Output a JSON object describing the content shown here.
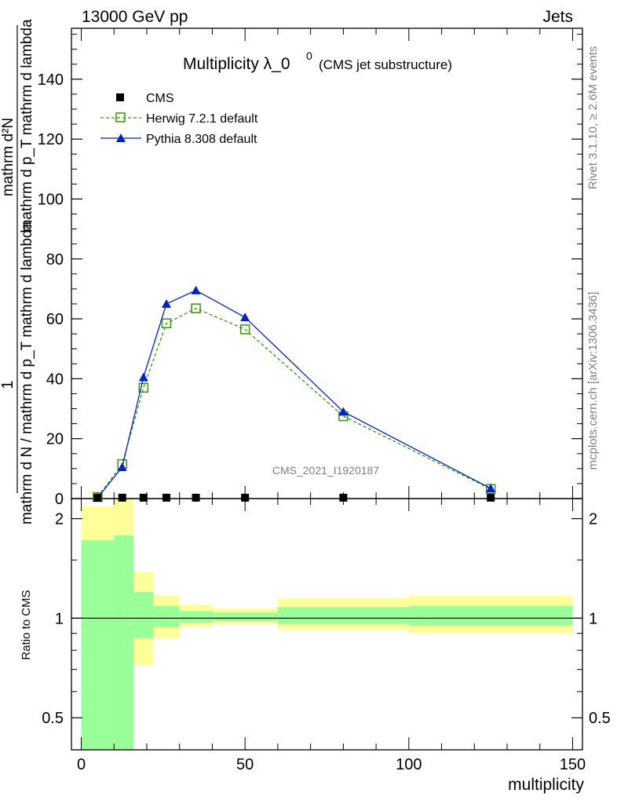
{
  "header": {
    "left": "13000 GeV pp",
    "right": "Jets"
  },
  "side_labels": {
    "rivet": "Rivet 3.1.10, ≥ 2.6M events",
    "mcplots": "mcplots.cern.ch [arXiv:1306.3436]"
  },
  "colors": {
    "cms": "#000000",
    "herwig": "#339900",
    "pythia": "#0022cc",
    "band_outer": "#ffff99",
    "band_inner": "#99ff99"
  },
  "chart_data": [
    {
      "type": "line",
      "title_main": "Multiplicity λ_0",
      "title_sup": "0",
      "title_small": "(CMS jet substructure)",
      "ylabel_num": "1",
      "ylabel_den": "mathrm d N / mathrm d p_T mathrm d lambda",
      "ylabel_num_top": "mathrm d²N",
      "ylabel_den_top": "mathrm d p_T mathrm d lambda",
      "xlim": [
        -3,
        153
      ],
      "ylim": [
        0,
        157
      ],
      "yticks": [
        0,
        20,
        40,
        60,
        80,
        100,
        120,
        140
      ],
      "ytick_labels": [
        "0",
        "20",
        "40",
        "60",
        "80",
        "100",
        "120",
        "140"
      ],
      "watermark": "CMS_2021_I1920187",
      "legend_position": "top-left",
      "series": [
        {
          "name": "CMS",
          "marker": "square",
          "x": [
            5,
            12.5,
            19,
            26,
            35,
            50,
            80,
            125
          ],
          "y": [
            0.3,
            0.3,
            0.3,
            0.3,
            0.3,
            0.3,
            0.3,
            0.3
          ]
        },
        {
          "name": "Herwig 7.2.1 default",
          "marker": "open-square",
          "style": "dashed",
          "x": [
            5,
            12.5,
            19,
            26,
            35,
            50,
            80,
            125
          ],
          "y": [
            0.5,
            11.5,
            37,
            58.5,
            63.5,
            56.5,
            27.5,
            3.2
          ]
        },
        {
          "name": "Pythia 8.308 default",
          "marker": "triangle",
          "style": "solid",
          "x": [
            5,
            12.5,
            19,
            26,
            35,
            50,
            80,
            125
          ],
          "y": [
            0.3,
            10.5,
            40.5,
            65,
            69.5,
            60.5,
            29,
            3.4
          ]
        }
      ]
    },
    {
      "type": "area",
      "ylabel": "Ratio to CMS",
      "xlabel": "multiplicity",
      "xlim": [
        -3,
        153
      ],
      "ylim": [
        0.4,
        2.3
      ],
      "scale": "log",
      "xticks": [
        0,
        50,
        100,
        150
      ],
      "xtick_labels": [
        "0",
        "50",
        "100",
        "150"
      ],
      "yticks": [
        0.5,
        1,
        2
      ],
      "ytick_labels": [
        "0.5",
        "1",
        "2"
      ],
      "reference_line": 1,
      "bins": [
        {
          "x0": 0,
          "x1": 10,
          "outer": [
            0.0,
            2.18
          ],
          "inner": [
            0.0,
            1.72
          ]
        },
        {
          "x0": 10,
          "x1": 16,
          "outer": [
            0.0,
            2.35
          ],
          "inner": [
            0.0,
            1.78
          ]
        },
        {
          "x0": 16,
          "x1": 22,
          "outer": [
            0.72,
            1.38
          ],
          "inner": [
            0.87,
            1.2
          ]
        },
        {
          "x0": 22,
          "x1": 30,
          "outer": [
            0.87,
            1.17
          ],
          "inner": [
            0.94,
            1.09
          ]
        },
        {
          "x0": 30,
          "x1": 40,
          "outer": [
            0.94,
            1.1
          ],
          "inner": [
            0.97,
            1.05
          ]
        },
        {
          "x0": 40,
          "x1": 60,
          "outer": [
            0.96,
            1.07
          ],
          "inner": [
            0.98,
            1.04
          ]
        },
        {
          "x0": 60,
          "x1": 100,
          "outer": [
            0.92,
            1.15
          ],
          "inner": [
            0.96,
            1.08
          ]
        },
        {
          "x0": 100,
          "x1": 150,
          "outer": [
            0.9,
            1.17
          ],
          "inner": [
            0.95,
            1.09
          ]
        }
      ]
    }
  ]
}
